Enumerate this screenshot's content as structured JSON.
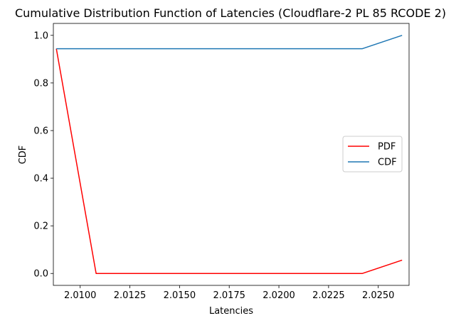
{
  "chart_data": {
    "type": "line",
    "title": "Cumulative Distribution Function of Latencies (Cloudflare-2 PL 85 RCODE 2)",
    "xlabel": "Latencies",
    "ylabel": "CDF",
    "xlim": [
      2.00865,
      2.02655
    ],
    "ylim": [
      -0.05,
      1.05
    ],
    "xticks": [
      2.01,
      2.0125,
      2.015,
      2.0175,
      2.02,
      2.0225,
      2.025
    ],
    "xtick_labels": [
      "2.0100",
      "2.0125",
      "2.0150",
      "2.0175",
      "2.0200",
      "2.0225",
      "2.0250"
    ],
    "yticks": [
      0.0,
      0.2,
      0.4,
      0.6,
      0.8,
      1.0
    ],
    "ytick_labels": [
      "0.0",
      "0.2",
      "0.4",
      "0.6",
      "0.8",
      "1.0"
    ],
    "grid": false,
    "legend_position": "center-right",
    "series": [
      {
        "name": "PDF",
        "color": "#ff0000",
        "x": [
          2.0088,
          2.0108,
          2.0242,
          2.0262
        ],
        "y": [
          0.944,
          0.0,
          0.0,
          0.056
        ]
      },
      {
        "name": "CDF",
        "color": "#1f77b4",
        "x": [
          2.0088,
          2.0108,
          2.0242,
          2.0262
        ],
        "y": [
          0.944,
          0.944,
          0.944,
          1.0
        ]
      }
    ]
  }
}
